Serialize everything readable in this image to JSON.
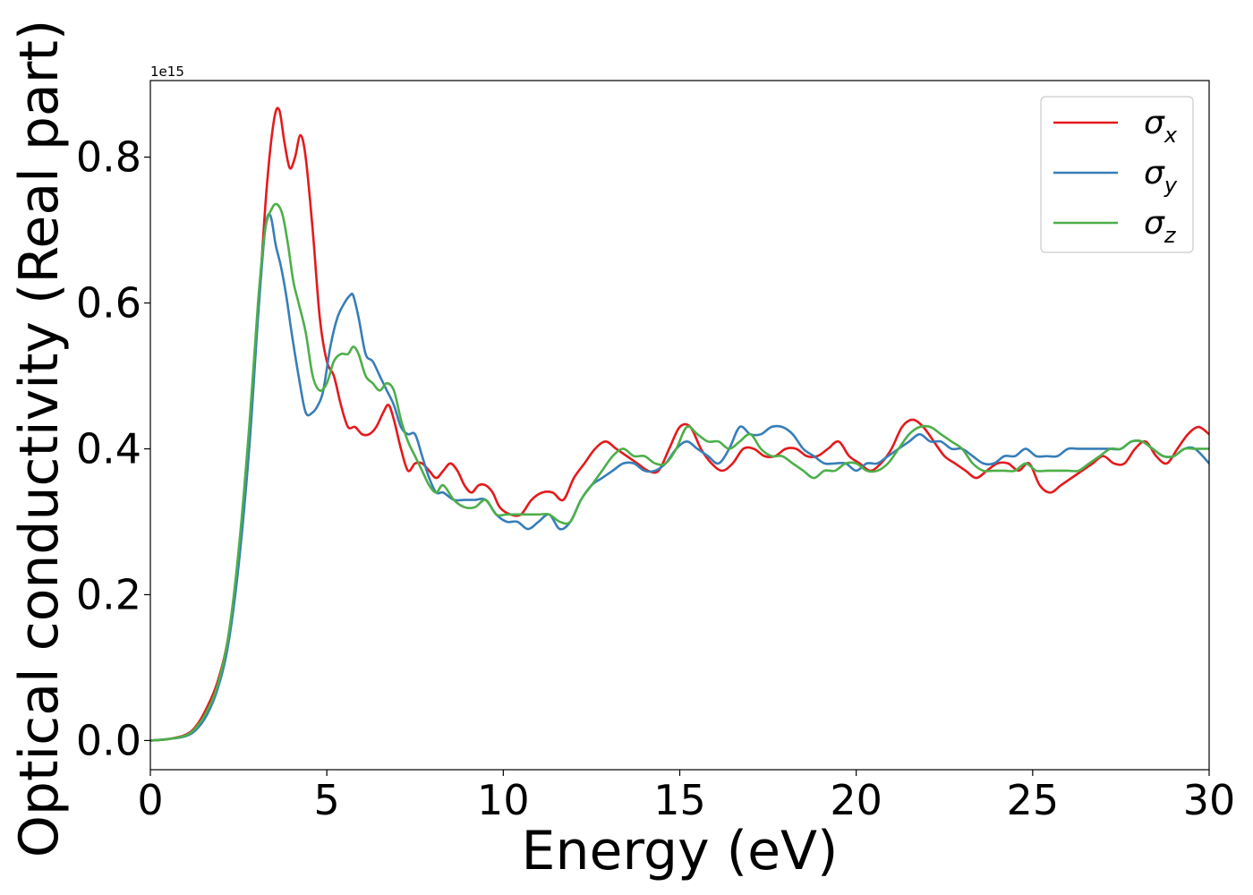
{
  "chart_data": {
    "type": "line",
    "xlabel": "Energy (eV)",
    "ylabel": "Optical conductivity (Real part)",
    "y_offset_label": "1e15",
    "xlim": [
      0,
      30
    ],
    "ylim": [
      -0.04,
      0.905
    ],
    "x_ticks": [
      0,
      5,
      10,
      15,
      20,
      25,
      30
    ],
    "x_tick_labels": [
      "0",
      "5",
      "10",
      "15",
      "20",
      "25",
      "30"
    ],
    "y_ticks": [
      0.0,
      0.2,
      0.4,
      0.6,
      0.8
    ],
    "y_tick_labels": [
      "0.0",
      "0.2",
      "0.4",
      "0.6",
      "0.8"
    ],
    "grid": false,
    "legend_position": "top-right",
    "series": [
      {
        "name": "σx",
        "symbol": "σ",
        "subscript": "x",
        "color": "#e41a1c",
        "x": [
          0,
          0.5,
          1,
          1.3,
          1.6,
          1.9,
          2.2,
          2.5,
          2.8,
          3.1,
          3.3,
          3.5,
          3.65,
          3.8,
          3.95,
          4.1,
          4.25,
          4.4,
          4.6,
          4.8,
          5,
          5.2,
          5.4,
          5.6,
          5.8,
          6,
          6.2,
          6.4,
          6.6,
          6.75,
          6.9,
          7.1,
          7.3,
          7.5,
          7.7,
          7.9,
          8.1,
          8.3,
          8.5,
          8.7,
          8.9,
          9.1,
          9.3,
          9.5,
          9.7,
          9.9,
          10.2,
          10.5,
          10.8,
          11.1,
          11.4,
          11.7,
          12,
          12.3,
          12.6,
          12.9,
          13.2,
          13.5,
          13.8,
          14.1,
          14.4,
          14.7,
          15,
          15.3,
          15.6,
          15.9,
          16.2,
          16.5,
          16.8,
          17.1,
          17.4,
          17.7,
          18,
          18.3,
          18.6,
          18.9,
          19.2,
          19.5,
          19.8,
          20.1,
          20.4,
          20.7,
          21,
          21.3,
          21.6,
          21.9,
          22.2,
          22.5,
          22.8,
          23.1,
          23.4,
          23.7,
          24,
          24.3,
          24.6,
          24.9,
          25.2,
          25.5,
          25.8,
          26.1,
          26.4,
          26.7,
          27,
          27.3,
          27.6,
          27.9,
          28.2,
          28.5,
          28.8,
          29.1,
          29.4,
          29.7,
          30
        ],
        "y": [
          0,
          0.002,
          0.008,
          0.02,
          0.045,
          0.08,
          0.14,
          0.25,
          0.42,
          0.62,
          0.76,
          0.85,
          0.865,
          0.82,
          0.785,
          0.8,
          0.83,
          0.8,
          0.7,
          0.58,
          0.52,
          0.5,
          0.46,
          0.43,
          0.43,
          0.42,
          0.42,
          0.43,
          0.45,
          0.46,
          0.44,
          0.4,
          0.37,
          0.38,
          0.38,
          0.37,
          0.36,
          0.37,
          0.38,
          0.37,
          0.35,
          0.34,
          0.35,
          0.35,
          0.34,
          0.32,
          0.31,
          0.31,
          0.33,
          0.34,
          0.34,
          0.33,
          0.36,
          0.38,
          0.4,
          0.41,
          0.4,
          0.39,
          0.38,
          0.37,
          0.37,
          0.4,
          0.43,
          0.43,
          0.4,
          0.38,
          0.37,
          0.38,
          0.4,
          0.4,
          0.39,
          0.39,
          0.4,
          0.4,
          0.39,
          0.39,
          0.4,
          0.41,
          0.39,
          0.38,
          0.37,
          0.38,
          0.4,
          0.43,
          0.44,
          0.43,
          0.41,
          0.39,
          0.38,
          0.37,
          0.36,
          0.37,
          0.38,
          0.38,
          0.37,
          0.38,
          0.35,
          0.34,
          0.35,
          0.36,
          0.37,
          0.38,
          0.39,
          0.38,
          0.38,
          0.4,
          0.41,
          0.39,
          0.38,
          0.4,
          0.42,
          0.43,
          0.42
        ]
      },
      {
        "name": "σy",
        "symbol": "σ",
        "subscript": "y",
        "color": "#377eb8",
        "x": [
          0,
          0.5,
          1,
          1.3,
          1.6,
          1.9,
          2.2,
          2.5,
          2.8,
          3.05,
          3.25,
          3.4,
          3.55,
          3.7,
          3.85,
          4,
          4.2,
          4.4,
          4.6,
          4.75,
          4.9,
          5.1,
          5.3,
          5.5,
          5.65,
          5.75,
          5.9,
          6.1,
          6.3,
          6.5,
          6.7,
          6.9,
          7.1,
          7.3,
          7.5,
          7.7,
          7.9,
          8.1,
          8.3,
          8.6,
          8.9,
          9.2,
          9.5,
          9.8,
          10.1,
          10.4,
          10.7,
          11,
          11.3,
          11.6,
          11.9,
          12.2,
          12.5,
          12.8,
          13.1,
          13.4,
          13.7,
          14,
          14.3,
          14.6,
          14.9,
          15.2,
          15.5,
          15.8,
          16.1,
          16.4,
          16.7,
          17,
          17.3,
          17.6,
          17.9,
          18.2,
          18.5,
          18.8,
          19.1,
          19.4,
          19.7,
          20,
          20.3,
          20.6,
          20.9,
          21.2,
          21.5,
          21.8,
          22.1,
          22.4,
          22.7,
          23,
          23.3,
          23.6,
          23.9,
          24.2,
          24.5,
          24.8,
          25.1,
          25.4,
          25.7,
          26,
          26.3,
          26.6,
          26.9,
          27.2,
          27.5,
          27.8,
          28.1,
          28.4,
          28.7,
          29,
          29.3,
          29.6,
          30
        ],
        "y": [
          0,
          0.002,
          0.006,
          0.015,
          0.035,
          0.07,
          0.13,
          0.24,
          0.4,
          0.58,
          0.7,
          0.72,
          0.68,
          0.65,
          0.61,
          0.56,
          0.5,
          0.45,
          0.45,
          0.46,
          0.48,
          0.54,
          0.58,
          0.6,
          0.61,
          0.61,
          0.58,
          0.53,
          0.52,
          0.5,
          0.48,
          0.46,
          0.43,
          0.42,
          0.42,
          0.39,
          0.36,
          0.34,
          0.34,
          0.33,
          0.33,
          0.33,
          0.33,
          0.31,
          0.3,
          0.3,
          0.29,
          0.3,
          0.31,
          0.29,
          0.3,
          0.33,
          0.35,
          0.36,
          0.37,
          0.38,
          0.38,
          0.37,
          0.37,
          0.38,
          0.4,
          0.41,
          0.4,
          0.39,
          0.38,
          0.4,
          0.43,
          0.42,
          0.42,
          0.43,
          0.43,
          0.42,
          0.4,
          0.39,
          0.38,
          0.38,
          0.38,
          0.37,
          0.38,
          0.38,
          0.39,
          0.4,
          0.41,
          0.42,
          0.41,
          0.41,
          0.4,
          0.4,
          0.39,
          0.38,
          0.38,
          0.39,
          0.39,
          0.4,
          0.39,
          0.39,
          0.39,
          0.4,
          0.4,
          0.4,
          0.4,
          0.4,
          0.4,
          0.41,
          0.41,
          0.4,
          0.39,
          0.39,
          0.4,
          0.4,
          0.38
        ]
      },
      {
        "name": "σz",
        "symbol": "σ",
        "subscript": "z",
        "color": "#4daf4a",
        "x": [
          0,
          0.5,
          1,
          1.3,
          1.6,
          1.9,
          2.2,
          2.5,
          2.8,
          3.05,
          3.25,
          3.45,
          3.6,
          3.75,
          3.9,
          4.05,
          4.2,
          4.4,
          4.6,
          4.8,
          5,
          5.2,
          5.4,
          5.6,
          5.75,
          5.9,
          6.1,
          6.3,
          6.5,
          6.7,
          6.9,
          7.1,
          7.3,
          7.5,
          7.7,
          7.9,
          8.1,
          8.3,
          8.6,
          8.9,
          9.2,
          9.5,
          9.8,
          10.1,
          10.4,
          10.7,
          11,
          11.3,
          11.6,
          11.9,
          12.2,
          12.5,
          12.8,
          13.1,
          13.4,
          13.7,
          14,
          14.3,
          14.6,
          14.9,
          15.2,
          15.5,
          15.8,
          16.1,
          16.4,
          16.7,
          17,
          17.3,
          17.6,
          17.9,
          18.2,
          18.5,
          18.8,
          19.1,
          19.4,
          19.7,
          20,
          20.3,
          20.6,
          20.9,
          21.2,
          21.5,
          21.8,
          22.1,
          22.4,
          22.7,
          23,
          23.3,
          23.6,
          23.9,
          24.2,
          24.5,
          24.8,
          25.1,
          25.4,
          25.7,
          26,
          26.3,
          26.6,
          26.9,
          27.2,
          27.5,
          27.8,
          28.1,
          28.4,
          28.7,
          29,
          29.3,
          29.6,
          30
        ],
        "y": [
          0,
          0.002,
          0.007,
          0.018,
          0.04,
          0.075,
          0.14,
          0.26,
          0.43,
          0.6,
          0.7,
          0.73,
          0.735,
          0.72,
          0.68,
          0.63,
          0.6,
          0.56,
          0.5,
          0.48,
          0.49,
          0.52,
          0.53,
          0.53,
          0.54,
          0.53,
          0.5,
          0.49,
          0.48,
          0.49,
          0.48,
          0.44,
          0.41,
          0.39,
          0.37,
          0.35,
          0.34,
          0.35,
          0.33,
          0.32,
          0.32,
          0.33,
          0.31,
          0.31,
          0.31,
          0.31,
          0.31,
          0.31,
          0.3,
          0.3,
          0.33,
          0.35,
          0.37,
          0.39,
          0.4,
          0.39,
          0.39,
          0.38,
          0.38,
          0.4,
          0.43,
          0.42,
          0.41,
          0.41,
          0.4,
          0.41,
          0.42,
          0.4,
          0.39,
          0.39,
          0.38,
          0.37,
          0.36,
          0.37,
          0.37,
          0.38,
          0.38,
          0.37,
          0.37,
          0.38,
          0.4,
          0.42,
          0.43,
          0.43,
          0.42,
          0.41,
          0.4,
          0.38,
          0.37,
          0.37,
          0.37,
          0.37,
          0.38,
          0.37,
          0.37,
          0.37,
          0.37,
          0.37,
          0.38,
          0.39,
          0.4,
          0.4,
          0.41,
          0.41,
          0.4,
          0.39,
          0.39,
          0.4,
          0.4,
          0.4
        ]
      }
    ]
  }
}
